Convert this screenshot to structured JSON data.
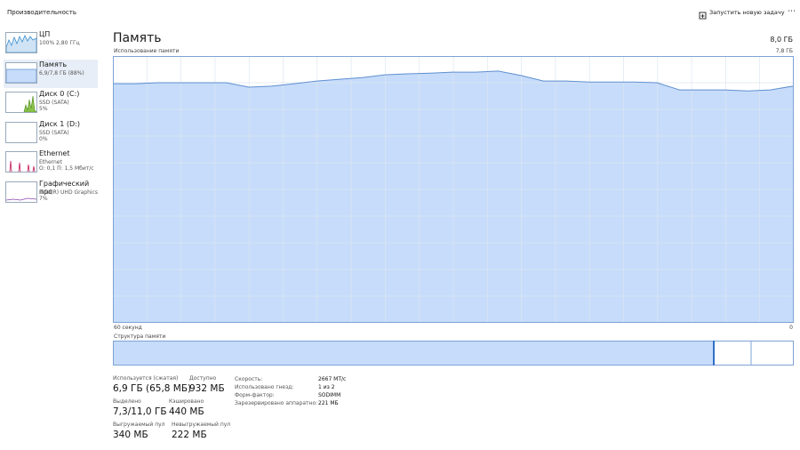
{
  "header": {
    "title": "Производительность",
    "new_task": "Запустить новую задачу"
  },
  "sidebar": [
    {
      "name": "ЦП",
      "details": [
        "100% 2,80 ГГц"
      ]
    },
    {
      "name": "Память",
      "details": [
        "6,9/7,8 ГБ (88%)"
      ]
    },
    {
      "name": "Диск 0 (C:)",
      "details": [
        "SSD (SATA)",
        "5%"
      ]
    },
    {
      "name": "Диск 1 (D:)",
      "details": [
        "SSD (SATA)",
        "0%"
      ]
    },
    {
      "name": "Ethernet",
      "details": [
        "Ethernet",
        "О: 0,1 П: 1,5 Мбит/с"
      ]
    },
    {
      "name": "Графический про",
      "details": [
        "Intel(R) UHD Graphics",
        "7%"
      ]
    }
  ],
  "main": {
    "title": "Память",
    "total": "8,0 ГБ",
    "graph_label": "Использование памяти",
    "graph_max": "7,8 ГБ",
    "time_left": "60 секунд",
    "time_right": "0",
    "composition_label": "Структура памяти"
  },
  "graph": {
    "ylim": [
      0,
      7.8
    ],
    "values": [
      6.99,
      6.99,
      7.02,
      7.02,
      7.02,
      7.02,
      6.89,
      6.92,
      6.99,
      7.07,
      7.12,
      7.17,
      7.25,
      7.28,
      7.3,
      7.33,
      7.33,
      7.36,
      7.23,
      7.07,
      7.07,
      7.04,
      7.04,
      7.04,
      7.02,
      6.81,
      6.81,
      6.81,
      6.78,
      6.81,
      6.92
    ]
  },
  "stats": [
    {
      "label": "Используется (сжатая)",
      "value": "6,9 ГБ (65,8 МБ)"
    },
    {
      "label": "Доступно",
      "value": "932 МБ"
    },
    {
      "label": "Выделено",
      "value": "7,3/11,0 ГБ"
    },
    {
      "label": "Кэшировано",
      "value": "440 МБ"
    },
    {
      "label": "Выгружаемый пул",
      "value": "340 МБ"
    },
    {
      "label": "Невыгружаемый пул",
      "value": "222 МБ"
    }
  ],
  "specs": [
    {
      "label": "Скорость:",
      "value": "2667 МТ/с"
    },
    {
      "label": "Использовано гнезд:",
      "value": "1 из 2"
    },
    {
      "label": "Форм-фактор:",
      "value": "SODIMM"
    },
    {
      "label": "Зарезервировано аппаратно:",
      "value": "221 МБ"
    }
  ]
}
